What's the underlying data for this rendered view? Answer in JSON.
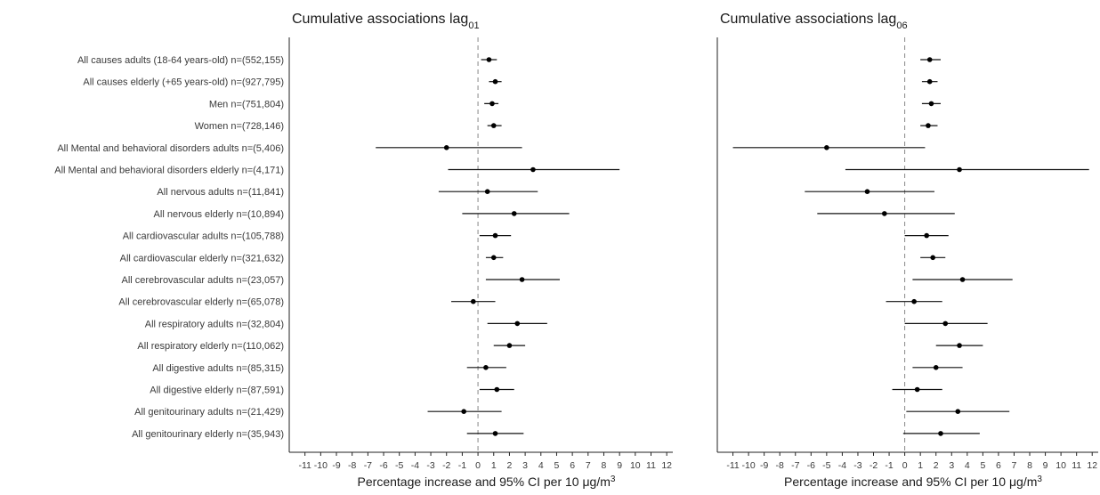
{
  "chart_data": {
    "type": "forest",
    "categories": [
      "All causes adults (18-64 years-old) n=(552,155)",
      "All causes elderly (+65 years-old) n=(927,795)",
      "Men n=(751,804)",
      "Women n=(728,146)",
      "All Mental and behavioral disorders adults n=(5,406)",
      "All Mental and behavioral disorders elderly n=(4,171)",
      "All nervous adults n=(11,841)",
      "All nervous elderly n=(10,894)",
      "All cardiovascular adults n=(105,788)",
      "All cardiovascular elderly n=(321,632)",
      "All cerebrovascular adults n=(23,057)",
      "All cerebrovascular elderly n=(65,078)",
      "All respiratory adults n=(32,804)",
      "All respiratory elderly n=(110,062)",
      "All digestive adults n=(85,315)",
      "All digestive elderly n=(87,591)",
      "All genitourinary adults n=(21,429)",
      "All genitourinary elderly n=(35,943)"
    ],
    "x_ticks": [
      -11,
      -10,
      -9,
      -8,
      -7,
      -6,
      -5,
      -4,
      -3,
      -2,
      -1,
      0,
      1,
      2,
      3,
      4,
      5,
      6,
      7,
      8,
      9,
      10,
      11,
      12
    ],
    "xlim": [
      -12,
      12.5
    ],
    "reference_line": 0,
    "panels": [
      {
        "title_main": "Cumulative associations lag",
        "title_sub": "01",
        "xlabel": "Percentage increase and 95% CI per 10 μg/m",
        "xlabel_sup": "3",
        "estimates": [
          {
            "est": 0.7,
            "lo": 0.2,
            "hi": 1.2
          },
          {
            "est": 1.1,
            "lo": 0.7,
            "hi": 1.5
          },
          {
            "est": 0.9,
            "lo": 0.4,
            "hi": 1.3
          },
          {
            "est": 1.0,
            "lo": 0.6,
            "hi": 1.5
          },
          {
            "est": -2.0,
            "lo": -6.5,
            "hi": 2.8
          },
          {
            "est": 3.5,
            "lo": -1.9,
            "hi": 9.0
          },
          {
            "est": 0.6,
            "lo": -2.5,
            "hi": 3.8
          },
          {
            "est": 2.3,
            "lo": -1.0,
            "hi": 5.8
          },
          {
            "est": 1.1,
            "lo": 0.1,
            "hi": 2.1
          },
          {
            "est": 1.0,
            "lo": 0.5,
            "hi": 1.6
          },
          {
            "est": 2.8,
            "lo": 0.5,
            "hi": 5.2
          },
          {
            "est": -0.3,
            "lo": -1.7,
            "hi": 1.1
          },
          {
            "est": 2.5,
            "lo": 0.6,
            "hi": 4.4
          },
          {
            "est": 2.0,
            "lo": 1.0,
            "hi": 3.0
          },
          {
            "est": 0.5,
            "lo": -0.7,
            "hi": 1.8
          },
          {
            "est": 1.2,
            "lo": 0.1,
            "hi": 2.3
          },
          {
            "est": -0.9,
            "lo": -3.2,
            "hi": 1.5
          },
          {
            "est": 1.1,
            "lo": -0.7,
            "hi": 2.9
          }
        ]
      },
      {
        "title_main": "Cumulative associations lag",
        "title_sub": "06",
        "xlabel": "Percentage increase and 95% CI per 10 μg/m",
        "xlabel_sup": "3",
        "estimates": [
          {
            "est": 1.6,
            "lo": 1.0,
            "hi": 2.3
          },
          {
            "est": 1.6,
            "lo": 1.1,
            "hi": 2.1
          },
          {
            "est": 1.7,
            "lo": 1.1,
            "hi": 2.3
          },
          {
            "est": 1.5,
            "lo": 1.0,
            "hi": 2.1
          },
          {
            "est": -5.0,
            "lo": -11.0,
            "hi": 1.3
          },
          {
            "est": 3.5,
            "lo": -3.8,
            "hi": 11.8
          },
          {
            "est": -2.4,
            "lo": -6.4,
            "hi": 1.9
          },
          {
            "est": -1.3,
            "lo": -5.6,
            "hi": 3.2
          },
          {
            "est": 1.4,
            "lo": 0.0,
            "hi": 2.8
          },
          {
            "est": 1.8,
            "lo": 1.0,
            "hi": 2.6
          },
          {
            "est": 3.7,
            "lo": 0.5,
            "hi": 6.9
          },
          {
            "est": 0.6,
            "lo": -1.2,
            "hi": 2.4
          },
          {
            "est": 2.6,
            "lo": 0.0,
            "hi": 5.3
          },
          {
            "est": 3.5,
            "lo": 2.0,
            "hi": 5.0
          },
          {
            "est": 2.0,
            "lo": 0.5,
            "hi": 3.7
          },
          {
            "est": 0.8,
            "lo": -0.8,
            "hi": 2.4
          },
          {
            "est": 3.4,
            "lo": 0.1,
            "hi": 6.7
          },
          {
            "est": 2.3,
            "lo": -0.1,
            "hi": 4.8
          }
        ]
      }
    ]
  }
}
